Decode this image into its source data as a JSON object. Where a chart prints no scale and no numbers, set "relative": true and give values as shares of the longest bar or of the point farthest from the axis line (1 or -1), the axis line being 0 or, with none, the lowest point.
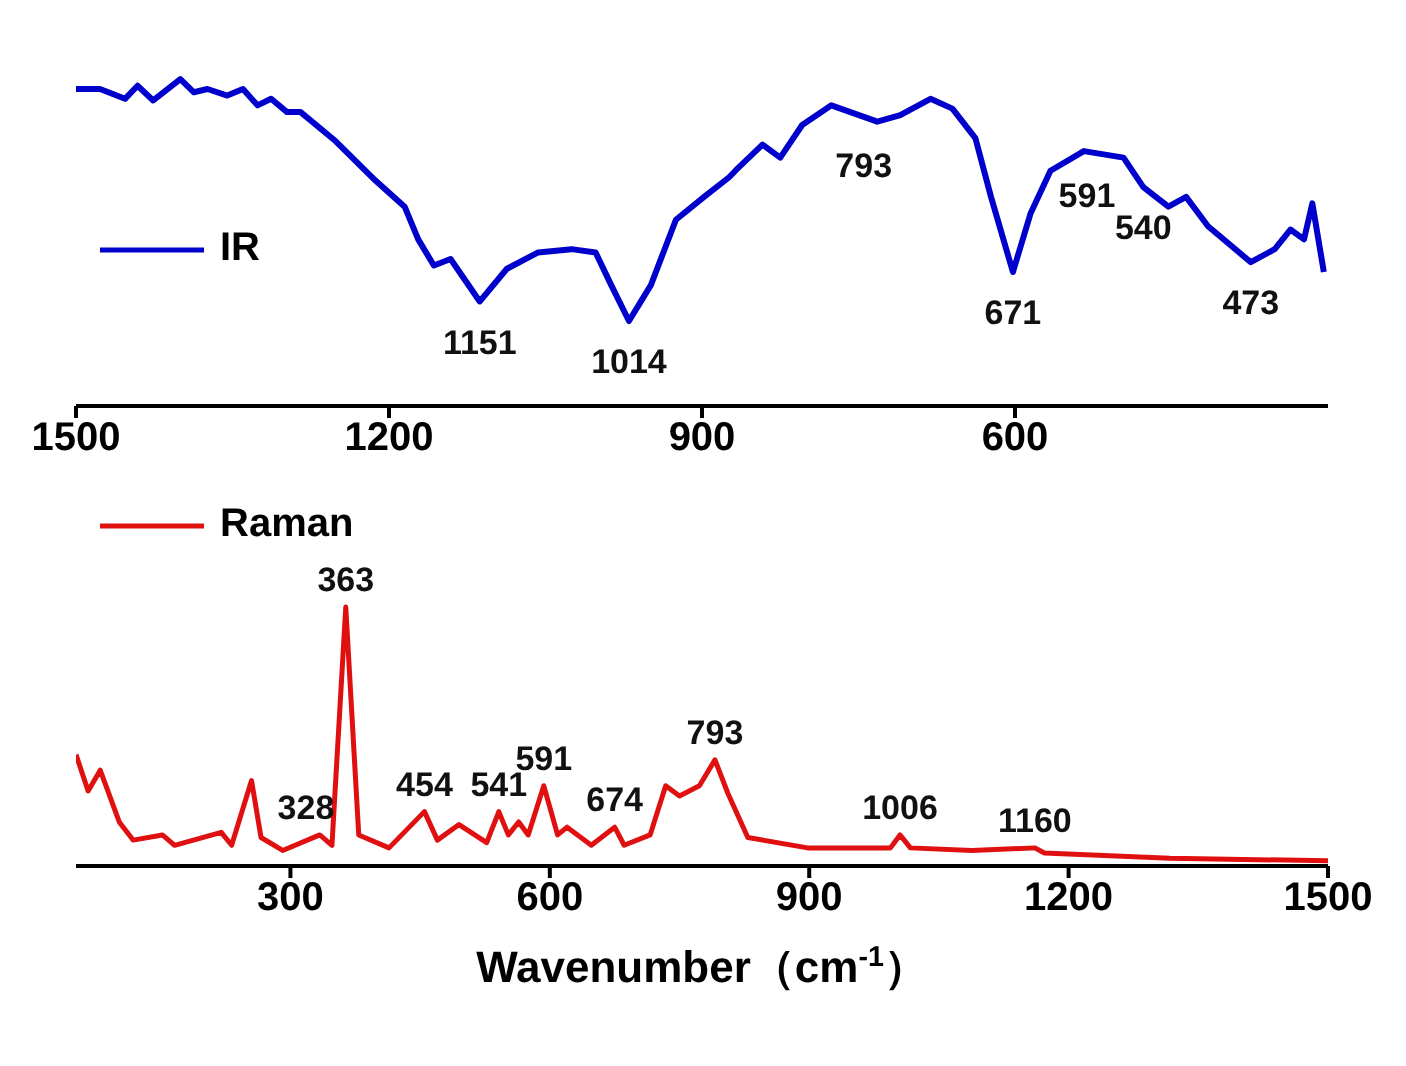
{
  "chart_data": [
    {
      "type": "line",
      "relative": true,
      "xlim": [
        1500,
        300
      ],
      "xticks": [
        1500,
        1200,
        900,
        600
      ],
      "legend": "left",
      "marker": "none",
      "series": [
        {
          "name": "IR",
          "color": "#0000cc",
          "x": [
            1500,
            1477,
            1453,
            1441,
            1426,
            1400,
            1387,
            1374,
            1355,
            1340,
            1326,
            1313,
            1298,
            1285,
            1251,
            1213,
            1185,
            1172,
            1157,
            1141,
            1113,
            1087,
            1057,
            1025,
            1002,
            987,
            970,
            949,
            925,
            898,
            874,
            868,
            842,
            825,
            804,
            776,
            732,
            710,
            681,
            660,
            638,
            623,
            602,
            585,
            566,
            534,
            496,
            477,
            453,
            436,
            415,
            374,
            351,
            336,
            323,
            315,
            304
          ],
          "values": [
            0.97,
            0.97,
            0.94,
            0.98,
            0.935,
            1,
            0.96,
            0.97,
            0.95,
            0.97,
            0.92,
            0.94,
            0.9,
            0.9,
            0.81,
            0.69,
            0.61,
            0.51,
            0.43,
            0.45,
            0.32,
            0.42,
            0.47,
            0.48,
            0.47,
            0.37,
            0.26,
            0.37,
            0.57,
            0.64,
            0.7,
            0.72,
            0.8,
            0.76,
            0.86,
            0.92,
            0.87,
            0.89,
            0.94,
            0.91,
            0.82,
            0.64,
            0.41,
            0.59,
            0.72,
            0.78,
            0.76,
            0.67,
            0.61,
            0.64,
            0.55,
            0.44,
            0.48,
            0.54,
            0.51,
            0.62,
            0.41
          ]
        }
      ],
      "annotations": [
        {
          "text": "1151",
          "x": 1113,
          "y": 0.32
        },
        {
          "text": "1014",
          "x": 970,
          "y": 0.26
        },
        {
          "text": "793",
          "x": 745,
          "y": 0.86
        },
        {
          "text": "671",
          "x": 602,
          "y": 0.41
        },
        {
          "text": "591",
          "x": 531,
          "y": 0.77
        },
        {
          "text": "540",
          "x": 477,
          "y": 0.67
        },
        {
          "text": "473",
          "x": 374,
          "y": 0.44
        }
      ]
    },
    {
      "type": "line",
      "relative": true,
      "xlim": [
        52,
        1500
      ],
      "xticks": [
        300,
        600,
        900,
        1200,
        1500
      ],
      "xlabel": "Wavenumber（cm$^{-1}$）",
      "legend": "top left",
      "marker": "none",
      "series": [
        {
          "name": "Raman",
          "color": "#e01010",
          "x": [
            52,
            66,
            80,
            102,
            118,
            152,
            166,
            220,
            232,
            255,
            266,
            291,
            334,
            348,
            364,
            379,
            414,
            455,
            470,
            495,
            527,
            541,
            552,
            564,
            575,
            593,
            609,
            620,
            648,
            675,
            686,
            716,
            734,
            750,
            773,
            791,
            806,
            829,
            898,
            994,
            1005,
            1017,
            1088,
            1161,
            1172,
            1317,
            1500
          ],
          "values": [
            0.43,
            0.29,
            0.37,
            0.17,
            0.1,
            0.12,
            0.08,
            0.13,
            0.08,
            0.33,
            0.11,
            0.06,
            0.12,
            0.08,
            1,
            0.12,
            0.07,
            0.21,
            0.1,
            0.16,
            0.09,
            0.21,
            0.12,
            0.17,
            0.12,
            0.31,
            0.12,
            0.15,
            0.08,
            0.15,
            0.08,
            0.12,
            0.31,
            0.27,
            0.31,
            0.41,
            0.28,
            0.11,
            0.07,
            0.07,
            0.12,
            0.07,
            0.06,
            0.07,
            0.05,
            0.03,
            0.02
          ]
        }
      ],
      "annotations": [
        {
          "text": "363",
          "x": 364,
          "y": 1
        },
        {
          "text": "328",
          "x": 318,
          "y": 0.12
        },
        {
          "text": "454",
          "x": 455,
          "y": 0.21
        },
        {
          "text": "541",
          "x": 541,
          "y": 0.21
        },
        {
          "text": "591",
          "x": 593,
          "y": 0.31
        },
        {
          "text": "674",
          "x": 675,
          "y": 0.15
        },
        {
          "text": "793",
          "x": 791,
          "y": 0.41
        },
        {
          "text": "1006",
          "x": 1005,
          "y": 0.12
        },
        {
          "text": "1160",
          "x": 1161,
          "y": 0.07
        }
      ]
    }
  ]
}
